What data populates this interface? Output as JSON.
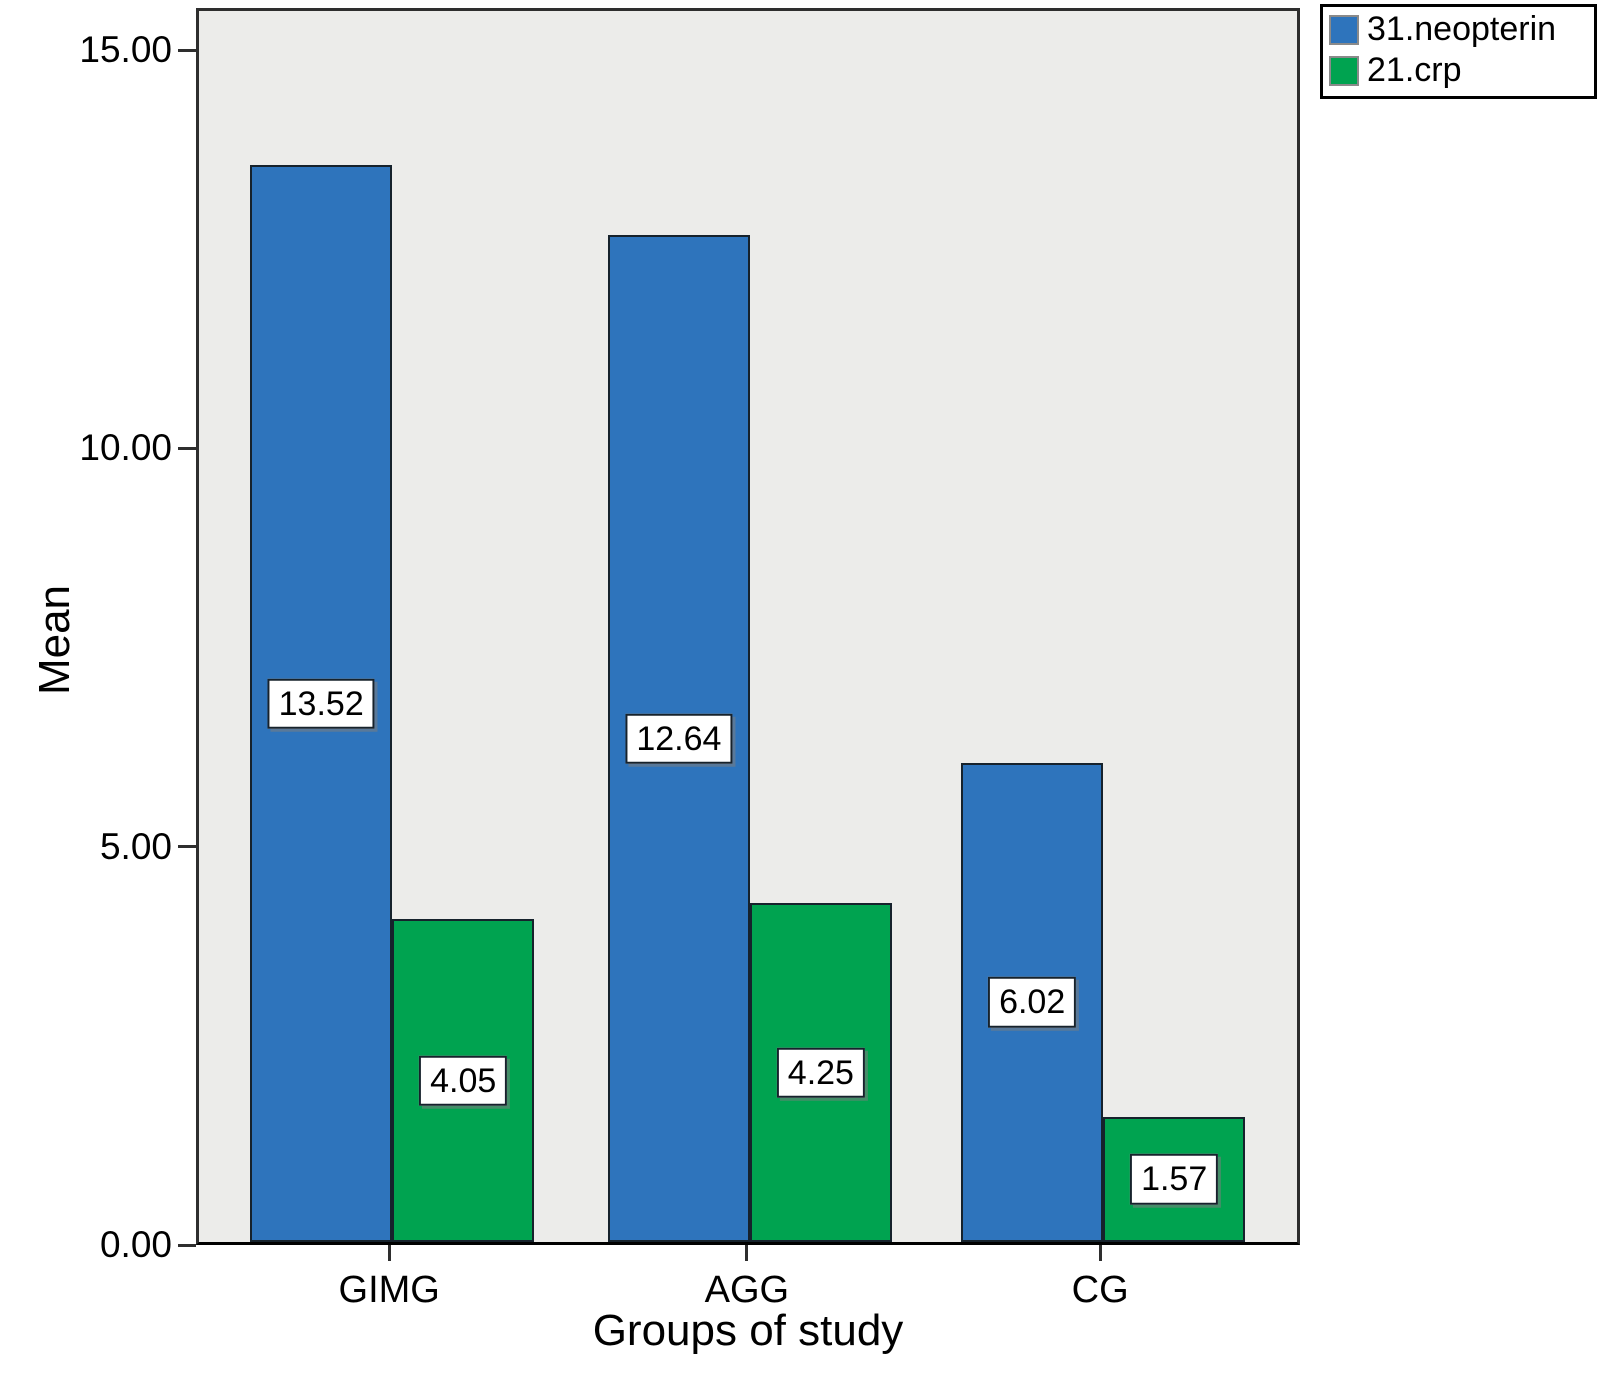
{
  "chart_data": {
    "type": "bar",
    "title": "",
    "xlabel": "Groups of study",
    "ylabel": "Mean",
    "categories": [
      "GIMG",
      "AGG",
      "CG"
    ],
    "series": [
      {
        "name": "31.neopterin",
        "color": "#2E74BC",
        "values": [
          13.52,
          12.64,
          6.02
        ],
        "labels": [
          "13.52",
          "12.64",
          "6.02"
        ]
      },
      {
        "name": "21.crp",
        "color": "#00A350",
        "values": [
          4.05,
          4.25,
          1.57
        ],
        "labels": [
          "4.05",
          "4.25",
          "1.57"
        ]
      }
    ],
    "y_ticks": [
      {
        "label": "0.00",
        "value": 0
      },
      {
        "label": "5.00",
        "value": 5
      },
      {
        "label": "10.00",
        "value": 10
      },
      {
        "label": "15.00",
        "value": 15
      }
    ],
    "ylim": [
      0,
      15.53
    ],
    "grid": false,
    "legend_position": "top-right",
    "plot_background": "#ECECEA",
    "bar_border_color": "#16222C"
  }
}
